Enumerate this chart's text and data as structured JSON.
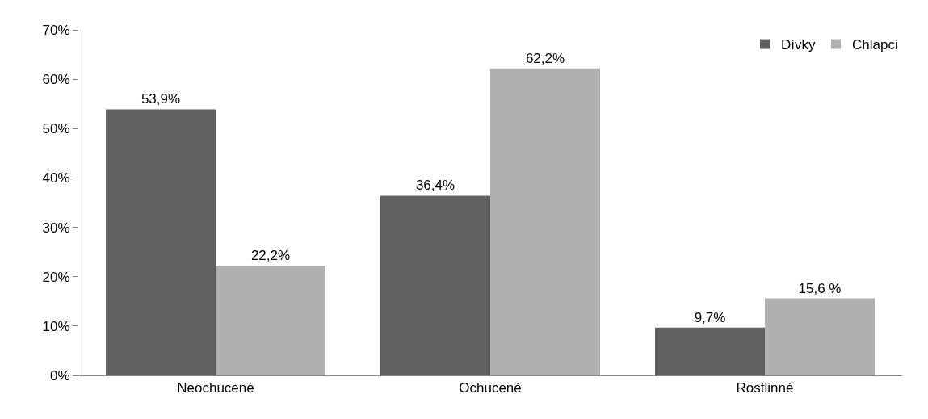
{
  "chart_data": {
    "type": "bar",
    "categories": [
      "Neochucené",
      "Ochucené",
      "Rostlinné"
    ],
    "series": [
      {
        "name": "Dívky",
        "color": "#606060",
        "values": [
          53.9,
          36.4,
          9.7
        ],
        "value_labels": [
          "53,9%",
          "36,4%",
          "9,7%"
        ]
      },
      {
        "name": "Chlapci",
        "color": "#b0b0b0",
        "values": [
          22.2,
          62.2,
          15.6
        ],
        "value_labels": [
          "22,2%",
          "62,2%",
          "15,6 %"
        ]
      }
    ],
    "ylim": [
      0,
      70
    ],
    "yticks": [
      {
        "value": 0,
        "label": "0%"
      },
      {
        "value": 10,
        "label": "10%"
      },
      {
        "value": 20,
        "label": "20%"
      },
      {
        "value": 30,
        "label": "30%"
      },
      {
        "value": 40,
        "label": "40%"
      },
      {
        "value": 50,
        "label": "50%"
      },
      {
        "value": 60,
        "label": "60%"
      },
      {
        "value": 70,
        "label": "70%"
      }
    ],
    "grid": false,
    "legend": "top right"
  }
}
